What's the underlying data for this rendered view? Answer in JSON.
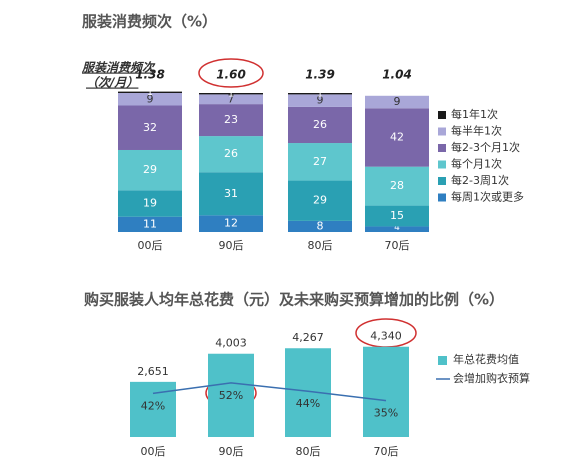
{
  "chart_data": [
    {
      "type": "stacked-bar",
      "title": "服装消费频次（%）",
      "ylabel": [
        "服装消费频次",
        "（次/月）"
      ],
      "categories": [
        "00后",
        "90后",
        "80后",
        "70后"
      ],
      "annotations": [
        "1.38",
        "1.60",
        "1.39",
        "1.04"
      ],
      "ylim": [
        0,
        100
      ],
      "series": [
        {
          "name": "每周1次或更多",
          "color": "#2f7fc1",
          "values": [
            11,
            12,
            8,
            4
          ]
        },
        {
          "name": "每2-3周1次",
          "color": "#2aa0b3",
          "values": [
            19,
            31,
            29,
            15
          ]
        },
        {
          "name": "每个月1次",
          "color": "#5ec6cd",
          "values": [
            29,
            26,
            27,
            28
          ]
        },
        {
          "name": "每2-3个月1次",
          "color": "#7a67a9",
          "values": [
            32,
            23,
            26,
            42
          ]
        },
        {
          "name": "每半年1次",
          "color": "#a9a7d8",
          "values": [
            9,
            7,
            9,
            9
          ]
        },
        {
          "name": "每1年1次",
          "color": "#1a1a1a",
          "values": [
            1,
            1,
            1,
            null
          ]
        }
      ]
    },
    {
      "type": "bar-line",
      "title": "购买服装人均年总花费（元）及未来购买预算增加的比例（%）",
      "categories": [
        "00后",
        "90后",
        "80后",
        "70后"
      ],
      "ylim": [
        0,
        5000
      ],
      "y2lim": [
        0,
        100
      ],
      "series": [
        {
          "name": "年总花费均值",
          "type": "bar",
          "color": "#4fc1c9",
          "values": [
            2651,
            4003,
            4267,
            4340
          ],
          "value_labels": [
            "2,651",
            "4,003",
            "4,267",
            "4,340"
          ]
        },
        {
          "name": "会增加购衣预算",
          "type": "line",
          "axis": "y2",
          "color": "#3a6fb0",
          "values": [
            42,
            52,
            44,
            35
          ],
          "value_labels": [
            "42%",
            "52%",
            "44%",
            "35%"
          ]
        }
      ]
    }
  ]
}
